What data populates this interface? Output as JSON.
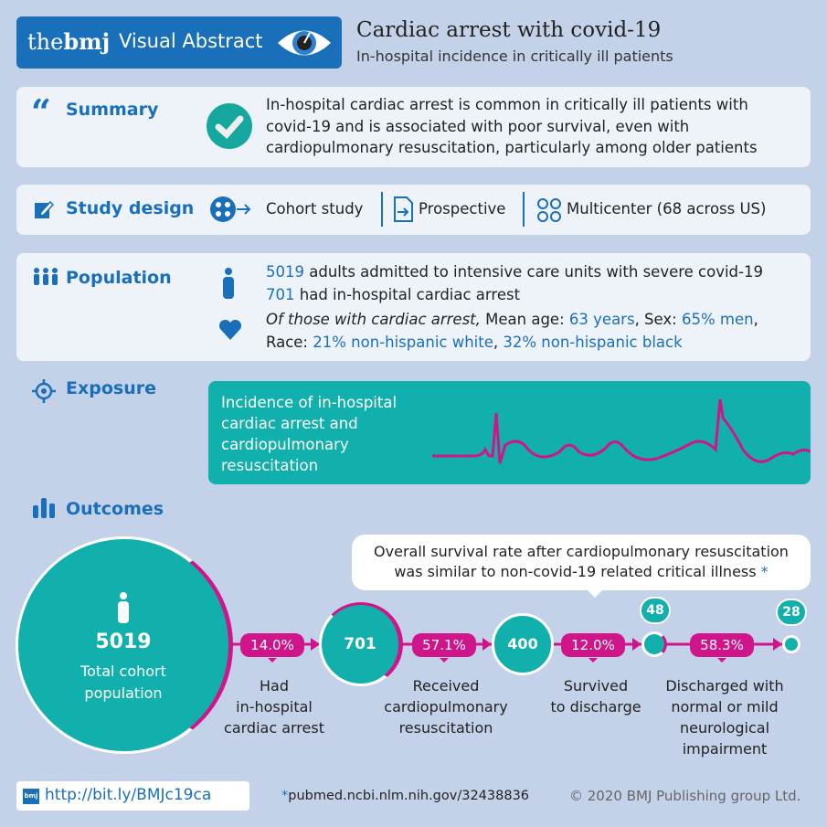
{
  "header": {
    "brand_the": "the",
    "brand_bmj": "bmj",
    "brand_label": "Visual Abstract",
    "title": "Cardiac arrest with covid-19",
    "subtitle": "In-hospital incidence in critically ill patients"
  },
  "summary": {
    "label": "Summary",
    "lines": [
      "In-hospital cardiac arrest is common in critically ill patients with",
      "covid-19 and is associated with poor survival, even with",
      "cardiopulmonary resuscitation, particularly among older patients"
    ]
  },
  "study_design": {
    "label": "Study design",
    "items": [
      "Cohort study",
      "Prospective",
      "Multicenter (68 across US)"
    ]
  },
  "population": {
    "label": "Population",
    "line1_num": "5019",
    "line1_text": " adults admitted to intensive care units with severe covid-19",
    "line2_num": "701",
    "line2_text": " had in-hospital cardiac arrest",
    "line3_italic": "Of those with cardiac arrest,",
    "line3_a": " Mean age: ",
    "line3_age": "63 years",
    "line3_b": ", Sex: ",
    "line3_sex": "65% men",
    "line4_a": "Race: ",
    "line4_white": "21% non-hispanic white",
    "line4_b": ", ",
    "line4_black": "32% non-hispanic black"
  },
  "exposure": {
    "label": "Exposure",
    "lines": [
      "Incidence of in-hospital",
      "cardiac arrest and",
      "cardiopulmonary",
      "resuscitation"
    ]
  },
  "outcomes": {
    "label": "Outcomes",
    "callout": [
      "Overall survival rate after cardiopulmonary resuscitation",
      "was similar to non-covid-19 related critical illness"
    ],
    "callout_star": "*",
    "total": "5019",
    "total_label": [
      "Total cohort",
      "population"
    ],
    "n1": "701",
    "n2": "400",
    "n3": "48",
    "n4": "28",
    "p1": "14.0%",
    "p2": "57.1%",
    "p3": "12.0%",
    "p4": "58.3%",
    "l1": [
      "Had",
      "in-hospital",
      "cardiac arrest"
    ],
    "l2": [
      "Received",
      "cardiopulmonary",
      "resuscitation"
    ],
    "l3": [
      "Survived",
      "to discharge"
    ],
    "l4": [
      "Discharged with",
      "normal or mild",
      "neurological",
      "impairment"
    ]
  },
  "footer": {
    "logo": "bmj",
    "url": "http://bit.ly/BMJc19ca",
    "star": "*",
    "ref": "pubmed.ncbi.nlm.nih.gov/32438836",
    "copyright": "© 2020 BMJ Publishing group Ltd."
  },
  "colors": {
    "background": "#c4d2e9",
    "panel": "#eef3fa",
    "blue": "#1a6fba",
    "teal": "#12b0ac",
    "magenta": "#d0158a"
  }
}
